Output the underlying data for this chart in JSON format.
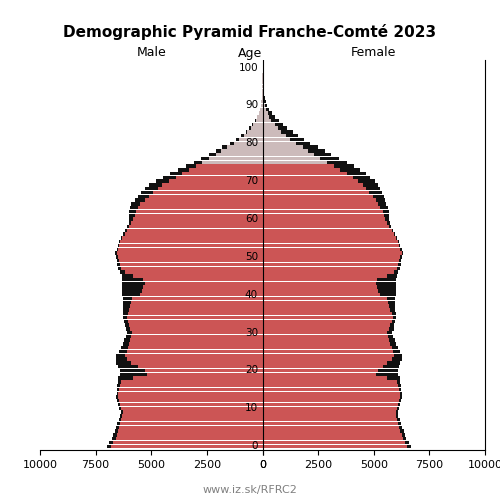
{
  "title": "Demographic Pyramid Franche-Comté 2023",
  "male_label": "Male",
  "female_label": "Female",
  "age_label": "Age",
  "source": "www.iz.sk/RFRC2",
  "xlim": 10000,
  "xticks": [
    10000,
    7500,
    5000,
    2500,
    0,
    2500,
    5000,
    7500,
    10000
  ],
  "bar_color_primary": "#cc5555",
  "bar_color_secondary": "#111111",
  "bar_color_old": "#ccbbbb",
  "ages": [
    0,
    1,
    2,
    3,
    4,
    5,
    6,
    7,
    8,
    9,
    10,
    11,
    12,
    13,
    14,
    15,
    16,
    17,
    18,
    19,
    20,
    21,
    22,
    23,
    24,
    25,
    26,
    27,
    28,
    29,
    30,
    31,
    32,
    33,
    34,
    35,
    36,
    37,
    38,
    39,
    40,
    41,
    42,
    43,
    44,
    45,
    46,
    47,
    48,
    49,
    50,
    51,
    52,
    53,
    54,
    55,
    56,
    57,
    58,
    59,
    60,
    61,
    62,
    63,
    64,
    65,
    66,
    67,
    68,
    69,
    70,
    71,
    72,
    73,
    74,
    75,
    76,
    77,
    78,
    79,
    80,
    81,
    82,
    83,
    84,
    85,
    86,
    87,
    88,
    89,
    90,
    91,
    92,
    93,
    94,
    95,
    96,
    97,
    98,
    99,
    100
  ],
  "male_primary": [
    6800,
    6700,
    6600,
    6550,
    6500,
    6450,
    6400,
    6350,
    6300,
    6280,
    6350,
    6400,
    6450,
    6500,
    6480,
    6450,
    6400,
    6350,
    5800,
    5200,
    5300,
    5600,
    5900,
    6100,
    6200,
    6100,
    6050,
    6000,
    5950,
    5900,
    5850,
    5950,
    6000,
    6050,
    6100,
    6050,
    6000,
    5950,
    5900,
    5850,
    5500,
    5400,
    5350,
    5300,
    5350,
    5800,
    6200,
    6350,
    6400,
    6450,
    6500,
    6550,
    6500,
    6450,
    6400,
    6300,
    6200,
    6100,
    6000,
    5900,
    5800,
    5750,
    5700,
    5600,
    5500,
    5300,
    5100,
    4900,
    4700,
    4500,
    4200,
    3900,
    3600,
    3300,
    3000,
    2700,
    2400,
    2100,
    1850,
    1600,
    1300,
    1050,
    850,
    680,
    530,
    410,
    300,
    230,
    160,
    110,
    70,
    45,
    30,
    18,
    12,
    7,
    4,
    2,
    1,
    0,
    0
  ],
  "male_secondary": [
    200,
    200,
    180,
    160,
    150,
    140,
    130,
    120,
    110,
    100,
    90,
    80,
    80,
    80,
    80,
    100,
    120,
    150,
    700,
    1200,
    1100,
    900,
    700,
    500,
    400,
    350,
    300,
    280,
    260,
    240,
    220,
    200,
    180,
    160,
    150,
    200,
    250,
    300,
    350,
    400,
    800,
    900,
    950,
    1000,
    950,
    500,
    200,
    150,
    120,
    100,
    80,
    70,
    60,
    50,
    50,
    60,
    70,
    80,
    100,
    120,
    200,
    250,
    300,
    350,
    400,
    450,
    500,
    550,
    580,
    600,
    600,
    580,
    550,
    500,
    450,
    400,
    350,
    300,
    250,
    200,
    160,
    130,
    100,
    80,
    60,
    40,
    30,
    20,
    10,
    8,
    5,
    3,
    2,
    1,
    1,
    0,
    0,
    0,
    0,
    0,
    0
  ],
  "female_primary": [
    6500,
    6400,
    6300,
    6250,
    6200,
    6150,
    6100,
    6050,
    6000,
    5980,
    6050,
    6100,
    6150,
    6200,
    6180,
    6150,
    6100,
    6050,
    5600,
    5100,
    5200,
    5400,
    5600,
    5800,
    5900,
    5850,
    5800,
    5750,
    5700,
    5650,
    5600,
    5700,
    5750,
    5800,
    5850,
    5800,
    5750,
    5700,
    5650,
    5600,
    5300,
    5200,
    5150,
    5100,
    5150,
    5600,
    5900,
    6050,
    6100,
    6150,
    6200,
    6250,
    6200,
    6150,
    6100,
    6000,
    5900,
    5800,
    5700,
    5600,
    5500,
    5450,
    5400,
    5300,
    5200,
    5100,
    4950,
    4800,
    4650,
    4500,
    4300,
    4050,
    3800,
    3500,
    3200,
    2900,
    2600,
    2300,
    2050,
    1800,
    1500,
    1250,
    1050,
    850,
    680,
    540,
    400,
    310,
    230,
    160,
    110,
    75,
    52,
    35,
    22,
    14,
    9,
    5,
    3,
    1,
    0
  ],
  "female_secondary": [
    180,
    180,
    160,
    150,
    140,
    130,
    120,
    110,
    100,
    90,
    80,
    75,
    75,
    75,
    75,
    90,
    110,
    130,
    600,
    1000,
    900,
    750,
    600,
    450,
    380,
    330,
    290,
    270,
    250,
    230,
    210,
    190,
    170,
    150,
    140,
    180,
    220,
    270,
    320,
    370,
    700,
    800,
    850,
    900,
    850,
    450,
    180,
    140,
    110,
    90,
    75,
    65,
    55,
    48,
    45,
    55,
    65,
    75,
    90,
    110,
    180,
    220,
    270,
    320,
    370,
    420,
    500,
    570,
    620,
    680,
    750,
    800,
    850,
    900,
    900,
    880,
    850,
    800,
    750,
    700,
    650,
    600,
    550,
    500,
    440,
    380,
    320,
    260,
    200,
    150,
    110,
    80,
    60,
    40,
    28,
    18,
    12,
    7,
    4,
    2,
    1
  ]
}
